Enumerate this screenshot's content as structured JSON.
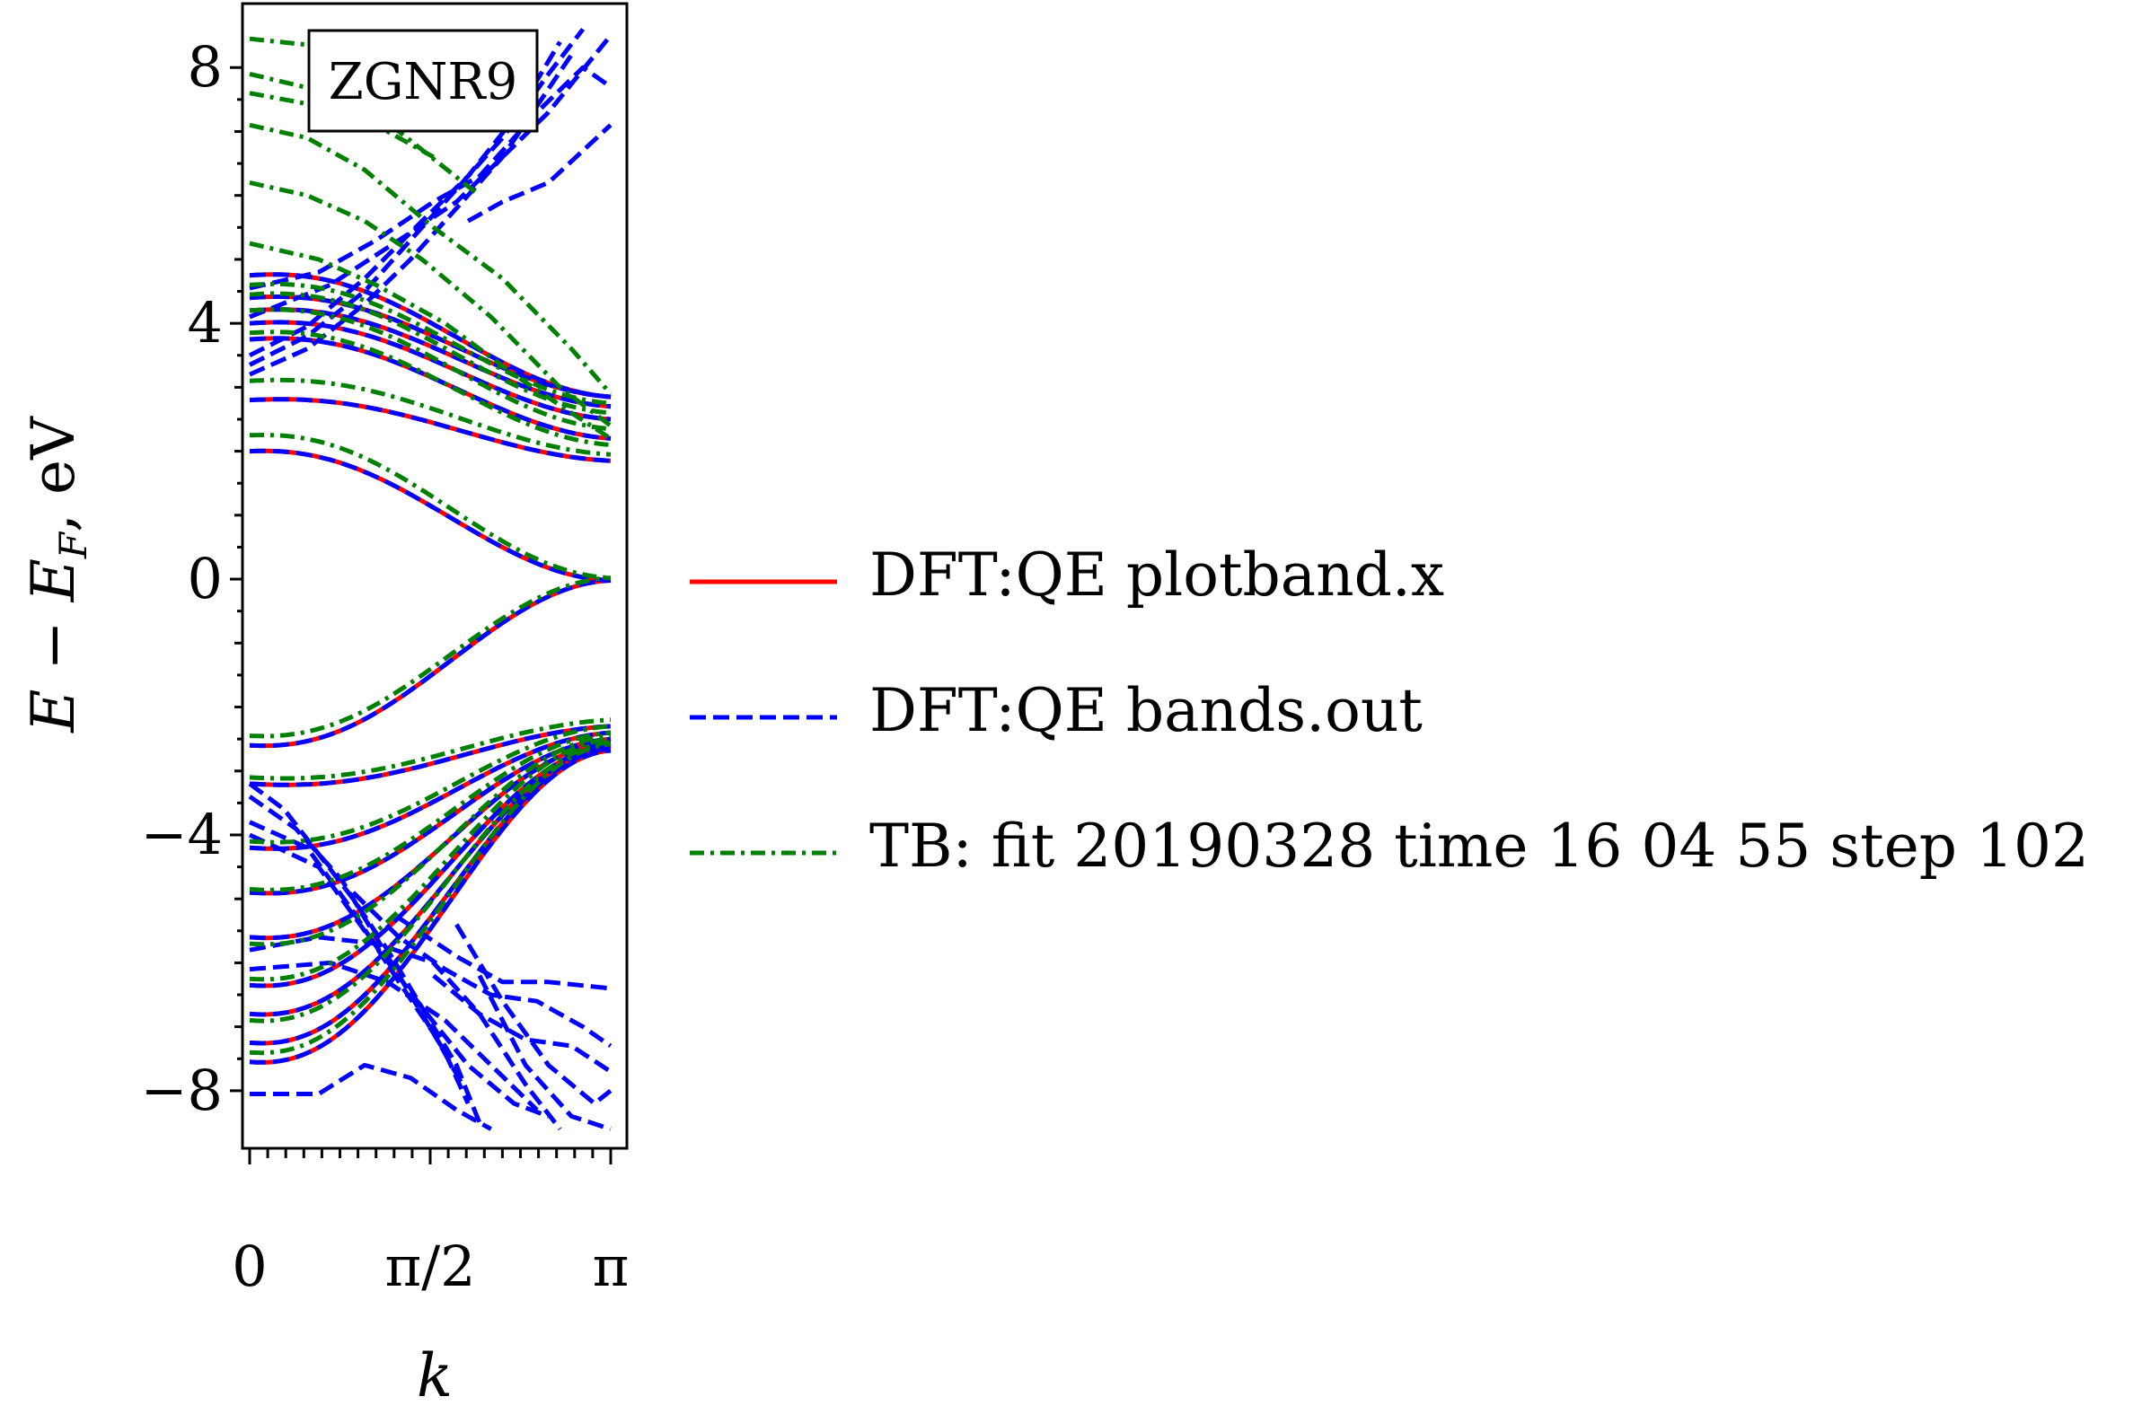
{
  "chart_data": {
    "type": "line",
    "annotation": "ZGNR9",
    "xlabel": "k",
    "ylabel": "E − E_F, eV",
    "ylabel_parts": {
      "E": "E",
      "minus": " − ",
      "EF": "E",
      "sub": "F",
      "unit": ", eV"
    },
    "xlim": [
      0,
      3.14159
    ],
    "ylim": [
      -8.9,
      9.0
    ],
    "x_ticks": [
      {
        "value": 0,
        "label": "0"
      },
      {
        "value": 1.5708,
        "label": "π/2"
      },
      {
        "value": 3.14159,
        "label": "π"
      }
    ],
    "y_ticks": [
      {
        "value": -8,
        "label": "−8"
      },
      {
        "value": -4,
        "label": "−4"
      },
      {
        "value": 0,
        "label": "0"
      },
      {
        "value": 4,
        "label": "4"
      },
      {
        "value": 8,
        "label": "8"
      }
    ],
    "grid": false,
    "legend_position": "right",
    "series": [
      {
        "name": "DFT:QE plotband.x",
        "style": "solid",
        "color": "#ff0000",
        "bands": [
          {
            "e0": 2.0,
            "epi": -0.02
          },
          {
            "e0": 2.8,
            "epi": 1.85
          },
          {
            "e0": 3.75,
            "epi": 2.2
          },
          {
            "e0": 4.0,
            "epi": 2.5
          },
          {
            "e0": 4.2,
            "epi": 2.7
          },
          {
            "e0": 4.4,
            "epi": 2.85
          },
          {
            "e0": 4.75,
            "epi": 2.85
          },
          {
            "e0": -2.6,
            "epi": -0.02
          },
          {
            "e0": -3.2,
            "epi": -2.3
          },
          {
            "e0": -4.2,
            "epi": -2.4
          },
          {
            "e0": -4.9,
            "epi": -2.5
          },
          {
            "e0": -5.6,
            "epi": -2.55
          },
          {
            "e0": -6.35,
            "epi": -2.6
          },
          {
            "e0": -6.8,
            "epi": -2.62
          },
          {
            "e0": -7.25,
            "epi": -2.65
          },
          {
            "e0": -7.55,
            "epi": -2.68
          }
        ]
      },
      {
        "name": "DFT:QE bands.out",
        "style": "dashed",
        "color": "#0000ff",
        "bands": [
          {
            "e0": 2.0,
            "epi": -0.02
          },
          {
            "e0": 2.8,
            "epi": 1.85
          },
          {
            "e0": 3.75,
            "epi": 2.2
          },
          {
            "e0": 4.0,
            "epi": 2.5
          },
          {
            "e0": 4.2,
            "epi": 2.7
          },
          {
            "e0": 4.4,
            "epi": 2.85
          },
          {
            "e0": 4.75,
            "epi": 2.85
          },
          {
            "e0": -2.6,
            "epi": -0.02
          },
          {
            "e0": -3.2,
            "epi": -2.3
          },
          {
            "e0": -4.2,
            "epi": -2.4
          },
          {
            "e0": -4.9,
            "epi": -2.5
          },
          {
            "e0": -5.6,
            "epi": -2.55
          },
          {
            "e0": -6.35,
            "epi": -2.6
          },
          {
            "e0": -6.8,
            "epi": -2.62
          },
          {
            "e0": -7.25,
            "epi": -2.65
          },
          {
            "e0": -7.55,
            "epi": -2.68
          }
        ],
        "extra_segments": [
          [
            [
              0,
              3.2
            ],
            [
              0.5,
              3.6
            ],
            [
              1.0,
              4.3
            ],
            [
              1.4,
              5.0
            ],
            [
              1.8,
              5.8
            ],
            [
              2.2,
              6.6
            ],
            [
              2.5,
              7.4
            ],
            [
              2.8,
              8.2
            ]
          ],
          [
            [
              0,
              3.35
            ],
            [
              0.5,
              3.8
            ],
            [
              1.0,
              4.5
            ],
            [
              1.4,
              5.3
            ],
            [
              1.8,
              6.1
            ],
            [
              2.2,
              6.9
            ],
            [
              2.6,
              7.9
            ],
            [
              2.9,
              8.6
            ]
          ],
          [
            [
              0,
              3.5
            ],
            [
              0.5,
              3.95
            ],
            [
              1.0,
              4.7
            ],
            [
              1.5,
              5.6
            ],
            [
              1.9,
              6.3
            ],
            [
              2.3,
              7.2
            ],
            [
              2.7,
              8.4
            ]
          ],
          [
            [
              0,
              4.55
            ],
            [
              0.6,
              4.8
            ],
            [
              1.1,
              5.3
            ],
            [
              1.6,
              5.9
            ],
            [
              2.0,
              6.3
            ],
            [
              2.5,
              7.3
            ],
            [
              2.9,
              8.0
            ],
            [
              3.14,
              7.7
            ]
          ],
          [
            [
              0,
              4.1
            ],
            [
              0.7,
              4.6
            ],
            [
              1.3,
              5.3
            ],
            [
              1.8,
              5.9
            ],
            [
              2.2,
              6.6
            ],
            [
              2.6,
              7.3
            ],
            [
              3.14,
              8.5
            ]
          ],
          [
            [
              1.9,
              5.6
            ],
            [
              2.2,
              5.9
            ],
            [
              2.6,
              6.2
            ],
            [
              3.14,
              7.1
            ]
          ],
          [
            [
              0,
              -3.2
            ],
            [
              0.3,
              -3.6
            ],
            [
              0.6,
              -4.3
            ],
            [
              0.9,
              -5.0
            ],
            [
              1.2,
              -5.8
            ],
            [
              1.5,
              -6.7
            ],
            [
              1.8,
              -7.6
            ],
            [
              2.0,
              -8.5
            ]
          ],
          [
            [
              0,
              -3.4
            ],
            [
              0.4,
              -3.9
            ],
            [
              0.8,
              -4.7
            ],
            [
              1.1,
              -5.6
            ],
            [
              1.4,
              -6.5
            ],
            [
              1.7,
              -7.4
            ],
            [
              1.9,
              -8.2
            ]
          ],
          [
            [
              0,
              -3.8
            ],
            [
              0.5,
              -4.2
            ],
            [
              0.9,
              -5.2
            ],
            [
              1.3,
              -6.3
            ],
            [
              1.6,
              -7.1
            ],
            [
              1.85,
              -7.9
            ]
          ],
          [
            [
              0,
              -4.0
            ],
            [
              0.6,
              -4.5
            ],
            [
              1.0,
              -5.5
            ],
            [
              1.5,
              -6.7
            ],
            [
              1.9,
              -7.6
            ],
            [
              2.3,
              -8.2
            ],
            [
              2.6,
              -8.4
            ]
          ],
          [
            [
              0,
              -8.05
            ],
            [
              0.6,
              -8.05
            ],
            [
              1.0,
              -7.6
            ],
            [
              1.4,
              -7.8
            ],
            [
              1.8,
              -8.3
            ],
            [
              2.1,
              -8.6
            ]
          ],
          [
            [
              0.9,
              -4.9
            ],
            [
              1.3,
              -5.6
            ],
            [
              1.7,
              -6.1
            ],
            [
              2.1,
              -6.5
            ],
            [
              2.5,
              -6.6
            ],
            [
              2.9,
              -7.0
            ],
            [
              3.14,
              -7.3
            ]
          ],
          [
            [
              1.3,
              -5.3
            ],
            [
              1.8,
              -5.9
            ],
            [
              2.2,
              -6.3
            ],
            [
              2.6,
              -6.3
            ],
            [
              3.14,
              -6.4
            ]
          ],
          [
            [
              1.6,
              -6.2
            ],
            [
              2.0,
              -6.8
            ],
            [
              2.4,
              -7.2
            ],
            [
              2.8,
              -7.3
            ],
            [
              3.14,
              -7.7
            ]
          ],
          [
            [
              1.8,
              -5.4
            ],
            [
              2.2,
              -6.6
            ],
            [
              2.6,
              -7.6
            ],
            [
              3.0,
              -8.2
            ],
            [
              3.14,
              -8.0
            ]
          ],
          [
            [
              2.0,
              -6.2
            ],
            [
              2.4,
              -7.6
            ],
            [
              2.8,
              -8.4
            ],
            [
              3.14,
              -8.6
            ]
          ],
          [
            [
              0,
              -5.8
            ],
            [
              0.6,
              -5.6
            ],
            [
              1.1,
              -5.7
            ],
            [
              1.6,
              -6.0
            ],
            [
              2.0,
              -6.8
            ],
            [
              2.4,
              -7.9
            ],
            [
              2.7,
              -8.6
            ]
          ],
          [
            [
              0,
              -6.1
            ],
            [
              0.7,
              -6.0
            ],
            [
              1.2,
              -6.3
            ],
            [
              1.7,
              -6.9
            ],
            [
              2.1,
              -7.6
            ],
            [
              2.5,
              -8.3
            ]
          ]
        ]
      },
      {
        "name": "TB: fit 20190328 time 16 04 55 step 102",
        "style": "dashdot",
        "color": "#008000",
        "bands": [
          {
            "e0": 2.25,
            "epi": 0.02
          },
          {
            "e0": 3.1,
            "epi": 1.95
          },
          {
            "e0": 3.85,
            "epi": 2.1
          },
          {
            "e0": 4.2,
            "epi": 2.35
          },
          {
            "e0": 4.45,
            "epi": 2.6
          },
          {
            "e0": 4.6,
            "epi": 2.75
          },
          {
            "e0": -2.45,
            "epi": 0.02
          },
          {
            "e0": -3.1,
            "epi": -2.2
          },
          {
            "e0": -4.1,
            "epi": -2.3
          },
          {
            "e0": -4.85,
            "epi": -2.4
          },
          {
            "e0": -5.7,
            "epi": -2.45
          },
          {
            "e0": -6.25,
            "epi": -2.5
          },
          {
            "e0": -6.9,
            "epi": -2.55
          },
          {
            "e0": -7.4,
            "epi": -2.58
          }
        ],
        "extra_segments": [
          [
            [
              0,
              8.45
            ],
            [
              0.8,
              8.3
            ],
            [
              1.6,
              8.1
            ],
            [
              2.4,
              8.4
            ]
          ],
          [
            [
              0,
              7.1
            ],
            [
              0.5,
              6.9
            ],
            [
              1.0,
              6.4
            ],
            [
              1.6,
              5.5
            ],
            [
              2.2,
              4.7
            ],
            [
              2.8,
              3.6
            ],
            [
              3.14,
              2.9
            ]
          ],
          [
            [
              0,
              6.2
            ],
            [
              0.5,
              6.0
            ],
            [
              1.0,
              5.6
            ],
            [
              1.5,
              5.0
            ],
            [
              2.1,
              4.1
            ],
            [
              2.7,
              3.0
            ],
            [
              3.14,
              2.4
            ]
          ],
          [
            [
              0,
              5.25
            ],
            [
              0.6,
              5.0
            ],
            [
              1.1,
              4.6
            ],
            [
              1.7,
              4.0
            ],
            [
              2.3,
              3.2
            ],
            [
              2.8,
              2.6
            ],
            [
              3.14,
              2.2
            ]
          ],
          [
            [
              0,
              7.9
            ],
            [
              0.7,
              7.6
            ],
            [
              1.3,
              7.0
            ],
            [
              2.0,
              6.0
            ]
          ],
          [
            [
              0,
              7.6
            ],
            [
              0.6,
              7.4
            ],
            [
              1.2,
              7.0
            ],
            [
              1.6,
              6.6
            ]
          ]
        ]
      }
    ]
  }
}
